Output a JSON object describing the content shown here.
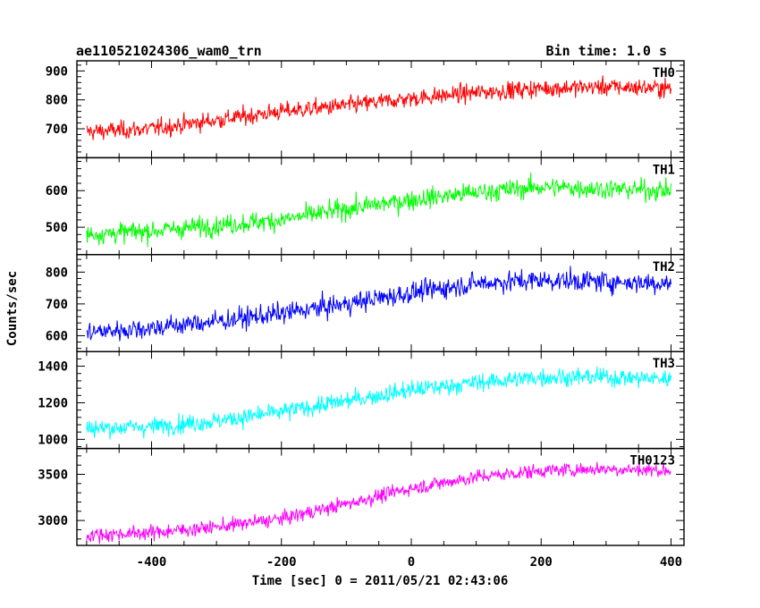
{
  "chart_data": {
    "type": "line",
    "title": "ae110521024306_wam0_trn",
    "subtitle": "Bin time: 1.0 s",
    "xlabel": "Time [sec] 0 = 2011/05/21 02:43:06",
    "ylabel": "Counts/sec",
    "xlim": [
      -515,
      420
    ],
    "x_range": [
      -500,
      400
    ],
    "xticks": [
      -400,
      -200,
      0,
      200,
      400
    ],
    "grid": false,
    "panels": [
      {
        "name": "TH0",
        "color": "#ff0000",
        "ylim": [
          600,
          935
        ],
        "yticks": [
          700,
          800,
          900
        ],
        "trend": [
          {
            "x": -500,
            "y": 690
          },
          {
            "x": -400,
            "y": 700
          },
          {
            "x": -300,
            "y": 730
          },
          {
            "x": -200,
            "y": 760
          },
          {
            "x": -100,
            "y": 780
          },
          {
            "x": 0,
            "y": 805
          },
          {
            "x": 100,
            "y": 825
          },
          {
            "x": 200,
            "y": 840
          },
          {
            "x": 300,
            "y": 845
          },
          {
            "x": 400,
            "y": 840
          }
        ],
        "noise": 28
      },
      {
        "name": "TH1",
        "color": "#00ff00",
        "ylim": [
          425,
          690
        ],
        "yticks": [
          500,
          600
        ],
        "trend": [
          {
            "x": -500,
            "y": 480
          },
          {
            "x": -400,
            "y": 490
          },
          {
            "x": -300,
            "y": 505
          },
          {
            "x": -200,
            "y": 520
          },
          {
            "x": -100,
            "y": 550
          },
          {
            "x": 0,
            "y": 575
          },
          {
            "x": 100,
            "y": 595
          },
          {
            "x": 200,
            "y": 610
          },
          {
            "x": 300,
            "y": 605
          },
          {
            "x": 400,
            "y": 600
          }
        ],
        "noise": 25
      },
      {
        "name": "TH2",
        "color": "#0000ff",
        "ylim": [
          550,
          855
        ],
        "yticks": [
          600,
          700,
          800
        ],
        "trend": [
          {
            "x": -500,
            "y": 610
          },
          {
            "x": -400,
            "y": 625
          },
          {
            "x": -300,
            "y": 645
          },
          {
            "x": -200,
            "y": 670
          },
          {
            "x": -100,
            "y": 700
          },
          {
            "x": 0,
            "y": 735
          },
          {
            "x": 100,
            "y": 765
          },
          {
            "x": 200,
            "y": 775
          },
          {
            "x": 300,
            "y": 770
          },
          {
            "x": 400,
            "y": 765
          }
        ],
        "noise": 30
      },
      {
        "name": "TH3",
        "color": "#00ffff",
        "ylim": [
          950,
          1480
        ],
        "yticks": [
          1000,
          1200,
          1400
        ],
        "trend": [
          {
            "x": -500,
            "y": 1060
          },
          {
            "x": -400,
            "y": 1070
          },
          {
            "x": -300,
            "y": 1100
          },
          {
            "x": -200,
            "y": 1150
          },
          {
            "x": -100,
            "y": 1210
          },
          {
            "x": 0,
            "y": 1270
          },
          {
            "x": 100,
            "y": 1310
          },
          {
            "x": 200,
            "y": 1340
          },
          {
            "x": 300,
            "y": 1340
          },
          {
            "x": 400,
            "y": 1330
          }
        ],
        "noise": 45
      },
      {
        "name": "TH0123",
        "color": "#ff00ff",
        "ylim": [
          2730,
          3780
        ],
        "yticks": [
          3000,
          3500
        ],
        "trend": [
          {
            "x": -500,
            "y": 2840
          },
          {
            "x": -400,
            "y": 2870
          },
          {
            "x": -300,
            "y": 2930
          },
          {
            "x": -200,
            "y": 3020
          },
          {
            "x": -100,
            "y": 3180
          },
          {
            "x": 0,
            "y": 3350
          },
          {
            "x": 100,
            "y": 3470
          },
          {
            "x": 200,
            "y": 3540
          },
          {
            "x": 300,
            "y": 3560
          },
          {
            "x": 400,
            "y": 3540
          }
        ],
        "noise": 70
      }
    ]
  }
}
